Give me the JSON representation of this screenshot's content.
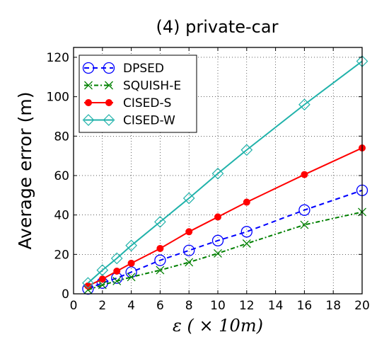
{
  "chart_data": {
    "type": "line",
    "title": "(4) private-car",
    "xlabel": "ε ( × 10m)",
    "ylabel": "Average error (m)",
    "xlim": [
      0,
      20
    ],
    "ylim": [
      0,
      125
    ],
    "xticks": [
      0,
      2,
      4,
      6,
      8,
      10,
      12,
      14,
      16,
      18,
      20
    ],
    "yticks": [
      0,
      20,
      40,
      60,
      80,
      100,
      120
    ],
    "grid": true,
    "legend": "top-left",
    "series": [
      {
        "name": "DPSED",
        "color": "#0000ff",
        "marker": "circle-open",
        "line": "dashed",
        "x": [
          1,
          2,
          3,
          4,
          6,
          8,
          10,
          12,
          16,
          20
        ],
        "y": [
          2.5,
          5.5,
          8,
          11,
          17,
          22,
          27,
          31.5,
          42.5,
          52.5
        ]
      },
      {
        "name": "SQUISH-E",
        "color": "#008000",
        "marker": "x",
        "line": "dashdot",
        "x": [
          1,
          2,
          3,
          4,
          6,
          8,
          10,
          12,
          16,
          20
        ],
        "y": [
          2,
          4.5,
          6.5,
          8.5,
          12,
          16,
          20.5,
          25.5,
          35,
          41.5
        ]
      },
      {
        "name": "CISED-S",
        "color": "#ff0000",
        "marker": "circle-filled",
        "line": "solid",
        "x": [
          1,
          2,
          3,
          4,
          6,
          8,
          10,
          12,
          16,
          20
        ],
        "y": [
          4,
          7.5,
          11.5,
          15.5,
          23,
          31.5,
          39,
          46.5,
          60.5,
          74
        ]
      },
      {
        "name": "CISED-W",
        "color": "#20b2aa",
        "marker": "diamond-open",
        "line": "solid",
        "x": [
          1,
          2,
          3,
          4,
          6,
          8,
          10,
          12,
          16,
          20
        ],
        "y": [
          5.5,
          12,
          18,
          24.5,
          36.5,
          48.5,
          61,
          73,
          96,
          118
        ]
      }
    ]
  }
}
